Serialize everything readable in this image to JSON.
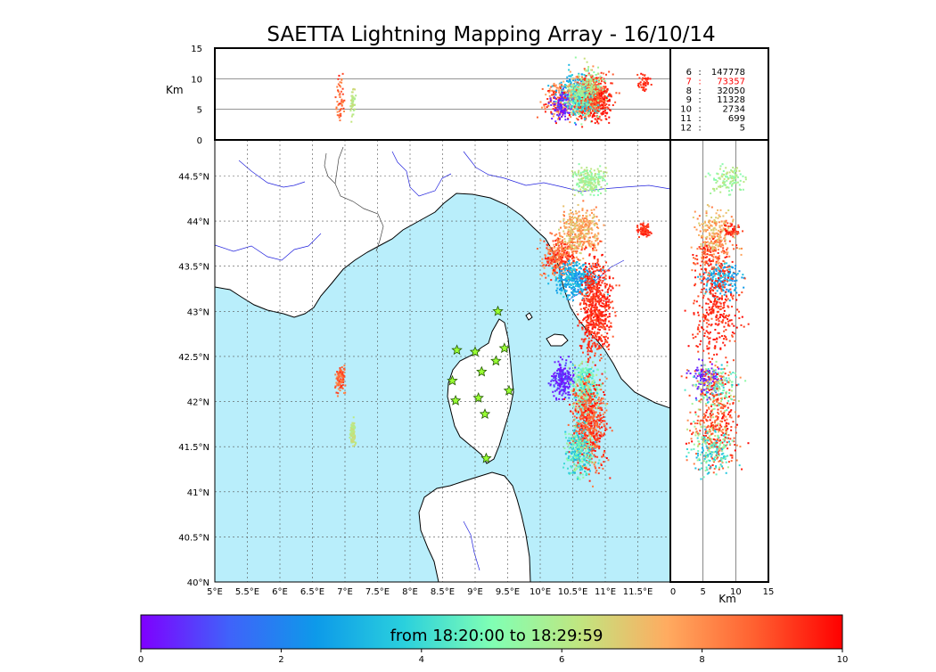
{
  "chart_data": {
    "type": "scatter",
    "title": "SAETTA Lightning Mapping Array - 16/10/14",
    "map": {
      "lon_range": [
        5.0,
        12.0
      ],
      "lat_range": [
        40.0,
        44.9
      ],
      "x_ticks": [
        "5°E",
        "5.5°E",
        "6°E",
        "6.5°E",
        "7°E",
        "7.5°E",
        "8°E",
        "8.5°E",
        "9°E",
        "9.5°E",
        "10°E",
        "10.5°E",
        "11°E",
        "11.5°E"
      ],
      "x_tick_values": [
        5.0,
        5.5,
        6.0,
        6.5,
        7.0,
        7.5,
        8.0,
        8.5,
        9.0,
        9.5,
        10.0,
        10.5,
        11.0,
        11.5
      ],
      "y_ticks": [
        "40°N",
        "40.5°N",
        "41°N",
        "41.5°N",
        "42°N",
        "42.5°N",
        "43°N",
        "43.5°N",
        "44°N",
        "44.5°N"
      ],
      "y_tick_values": [
        40.0,
        40.5,
        41.0,
        41.5,
        42.0,
        42.5,
        43.0,
        43.5,
        44.0,
        44.5
      ],
      "sea_color": "#b9eefb",
      "land_color": "#ffffff",
      "stations": [
        {
          "lon": 9.35,
          "lat": 43.0
        },
        {
          "lon": 8.72,
          "lat": 42.57
        },
        {
          "lon": 9.0,
          "lat": 42.55
        },
        {
          "lon": 9.45,
          "lat": 42.59
        },
        {
          "lon": 9.32,
          "lat": 42.45
        },
        {
          "lon": 9.1,
          "lat": 42.33
        },
        {
          "lon": 8.65,
          "lat": 42.23
        },
        {
          "lon": 9.52,
          "lat": 42.12
        },
        {
          "lon": 8.7,
          "lat": 42.01
        },
        {
          "lon": 9.05,
          "lat": 42.04
        },
        {
          "lon": 9.15,
          "lat": 41.86
        },
        {
          "lon": 9.17,
          "lat": 41.37
        }
      ]
    },
    "altitude_panel": {
      "ylabel": "Km",
      "y_range": [
        0,
        15
      ],
      "y_ticks": [
        "0",
        "5",
        "10",
        "15"
      ],
      "y_tick_values": [
        0,
        5,
        10,
        15
      ]
    },
    "side_panel": {
      "xlabel": "Km",
      "x_range": [
        0,
        15
      ],
      "x_ticks": [
        "0",
        "5",
        "10",
        "15"
      ],
      "x_tick_values": [
        0,
        5,
        10,
        15
      ]
    },
    "station_counts": [
      {
        "stations": "6",
        "count": "147778",
        "highlight": false
      },
      {
        "stations": "7",
        "count": "73357",
        "highlight": true
      },
      {
        "stations": "8",
        "count": "32050",
        "highlight": false
      },
      {
        "stations": "9",
        "count": "11328",
        "highlight": false
      },
      {
        "stations": "10",
        "count": "2734",
        "highlight": false
      },
      {
        "stations": "11",
        "count": "699",
        "highlight": false
      },
      {
        "stations": "12",
        "count": "5",
        "highlight": false
      }
    ],
    "colorbar": {
      "label": "from 18:20:00 to 18:29:59",
      "range": [
        0,
        10
      ],
      "ticks": [
        "0",
        "2",
        "4",
        "6",
        "8",
        "10"
      ],
      "tick_values": [
        0,
        2,
        4,
        6,
        8,
        10
      ]
    },
    "storm_cells": [
      {
        "lon": 6.93,
        "lat": 42.25,
        "rlon": 0.06,
        "rlat": 0.12,
        "t0": 7.8,
        "t1": 9.6,
        "alt": 6.5,
        "alt_spread": 3.5
      },
      {
        "lon": 7.12,
        "lat": 41.65,
        "rlon": 0.03,
        "rlat": 0.12,
        "t0": 5.8,
        "t1": 6.6,
        "alt": 6.0,
        "alt_spread": 3.0
      },
      {
        "lon": 10.3,
        "lat": 43.6,
        "rlon": 0.22,
        "rlat": 0.18,
        "t0": 7.6,
        "t1": 9.8,
        "alt": 6.5,
        "alt_spread": 3.0
      },
      {
        "lon": 10.55,
        "lat": 43.35,
        "rlon": 0.28,
        "rlat": 0.16,
        "t0": 2.0,
        "t1": 4.0,
        "alt": 8.0,
        "alt_spread": 3.0
      },
      {
        "lon": 10.6,
        "lat": 43.9,
        "rlon": 0.25,
        "rlat": 0.2,
        "t0": 6.5,
        "t1": 8.5,
        "alt": 7.0,
        "alt_spread": 3.0
      },
      {
        "lon": 10.85,
        "lat": 43.05,
        "rlon": 0.2,
        "rlat": 0.45,
        "t0": 8.8,
        "t1": 10.0,
        "alt": 7.0,
        "alt_spread": 3.5
      },
      {
        "lon": 10.35,
        "lat": 42.25,
        "rlon": 0.15,
        "rlat": 0.15,
        "t0": 0.0,
        "t1": 1.0,
        "alt": 5.5,
        "alt_spread": 2.5
      },
      {
        "lon": 10.7,
        "lat": 42.15,
        "rlon": 0.18,
        "rlat": 0.22,
        "t0": 3.5,
        "t1": 6.5,
        "alt": 7.0,
        "alt_spread": 3.0
      },
      {
        "lon": 10.75,
        "lat": 41.75,
        "rlon": 0.22,
        "rlat": 0.38,
        "t0": 8.0,
        "t1": 10.0,
        "alt": 7.0,
        "alt_spread": 3.5
      },
      {
        "lon": 10.6,
        "lat": 41.45,
        "rlon": 0.18,
        "rlat": 0.22,
        "t0": 3.0,
        "t1": 6.0,
        "alt": 6.5,
        "alt_spread": 3.0
      },
      {
        "lon": 10.75,
        "lat": 44.45,
        "rlon": 0.2,
        "rlat": 0.12,
        "t0": 5.0,
        "t1": 6.5,
        "alt": 9.0,
        "alt_spread": 3.0
      },
      {
        "lon": 11.6,
        "lat": 43.9,
        "rlon": 0.08,
        "rlat": 0.06,
        "t0": 9.0,
        "t1": 9.8,
        "alt": 9.5,
        "alt_spread": 1.5
      }
    ]
  }
}
